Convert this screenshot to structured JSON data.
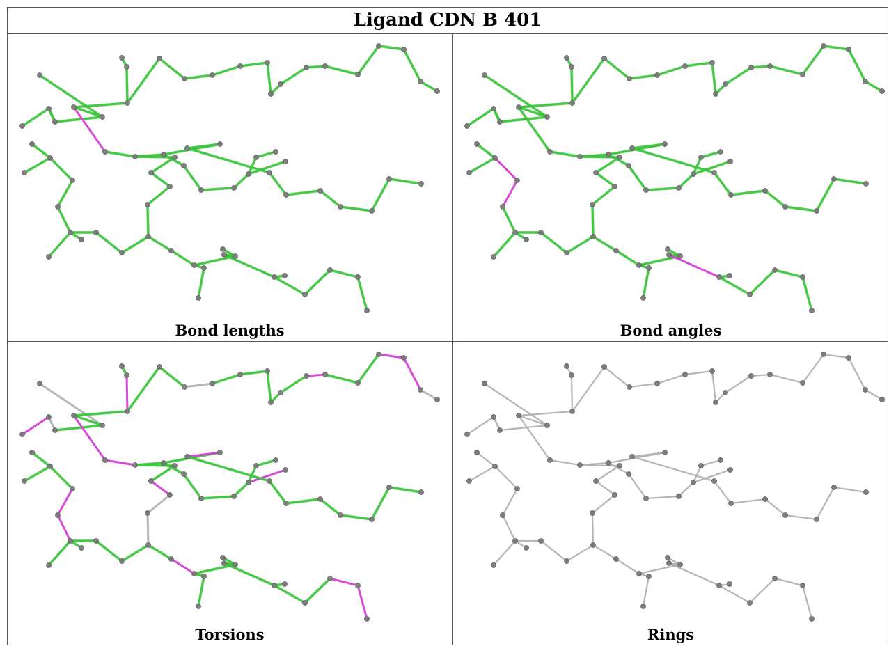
{
  "title": "Ligand CDN B 401",
  "colors": {
    "ok": "#3ccb3c",
    "outlier": "#d640d6",
    "neutral": "#b4b4b4",
    "atom": "#7d7d7d"
  },
  "panels": [
    {
      "caption": "Bond lengths",
      "outliers": [
        [
          4,
          9
        ],
        [
          36,
          38
        ]
      ],
      "mode": "bonds"
    },
    {
      "caption": "Bond angles",
      "outliers": [
        [
          27,
          28
        ],
        [
          28,
          29
        ],
        [
          39,
          40
        ],
        [
          40,
          41
        ]
      ],
      "mode": "bonds"
    },
    {
      "caption": "Torsions",
      "outliers": [
        [
          6,
          7
        ],
        [
          15,
          16
        ],
        [
          18,
          19
        ],
        [
          20,
          21
        ],
        [
          1,
          2
        ],
        [
          4,
          9
        ],
        [
          9,
          10
        ],
        [
          26,
          27
        ],
        [
          27,
          28
        ],
        [
          30,
          31
        ],
        [
          33,
          34
        ],
        [
          34,
          35
        ],
        [
          43,
          44
        ],
        [
          44,
          45
        ],
        [
          53,
          54
        ],
        [
          56,
          57
        ],
        [
          57,
          58
        ]
      ],
      "neutral": [
        [
          0,
          5
        ],
        [
          1,
          3
        ],
        [
          16,
          17
        ],
        [
          21,
          22
        ],
        [
          22,
          23
        ],
        [
          47,
          48
        ],
        [
          58,
          59
        ]
      ],
      "mode": "torsion"
    },
    {
      "caption": "Rings",
      "mode": "rings"
    }
  ]
}
